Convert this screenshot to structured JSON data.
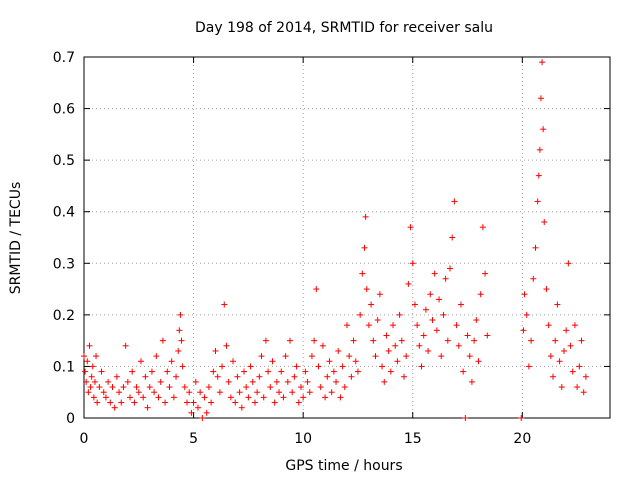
{
  "chart_data": {
    "type": "scatter",
    "title": "Day 198 of 2014, SRMTID for receiver salu",
    "xlabel": "GPS time / hours",
    "ylabel": "SRMTID / TECUs",
    "xlim": [
      0,
      24
    ],
    "ylim": [
      0,
      0.7
    ],
    "x_ticks": [
      0,
      5,
      10,
      15,
      20
    ],
    "x_tick_labels": [
      "0",
      "5",
      "10",
      "15",
      "20"
    ],
    "y_ticks": [
      0,
      0.1,
      0.2,
      0.3,
      0.4,
      0.5,
      0.6,
      0.7
    ],
    "y_tick_labels": [
      "0",
      "0.1",
      "0.2",
      "0.3",
      "0.4",
      "0.5",
      "0.6",
      "0.7"
    ],
    "grid": true,
    "marker": "plus",
    "marker_color": "#ff0000",
    "series": [
      {
        "name": "SRMTID",
        "points": [
          [
            0.0,
            0.12
          ],
          [
            0.05,
            0.09
          ],
          [
            0.1,
            0.07
          ],
          [
            0.15,
            0.11
          ],
          [
            0.2,
            0.05
          ],
          [
            0.25,
            0.14
          ],
          [
            0.3,
            0.06
          ],
          [
            0.35,
            0.08
          ],
          [
            0.4,
            0.1
          ],
          [
            0.45,
            0.04
          ],
          [
            0.5,
            0.07
          ],
          [
            0.55,
            0.12
          ],
          [
            0.6,
            0.03
          ],
          [
            0.7,
            0.06
          ],
          [
            0.8,
            0.09
          ],
          [
            0.9,
            0.05
          ],
          [
            1.0,
            0.04
          ],
          [
            1.1,
            0.07
          ],
          [
            1.2,
            0.03
          ],
          [
            1.3,
            0.06
          ],
          [
            1.4,
            0.02
          ],
          [
            1.5,
            0.08
          ],
          [
            1.6,
            0.05
          ],
          [
            1.7,
            0.03
          ],
          [
            1.8,
            0.06
          ],
          [
            1.9,
            0.14
          ],
          [
            2.0,
            0.07
          ],
          [
            2.1,
            0.04
          ],
          [
            2.2,
            0.09
          ],
          [
            2.3,
            0.03
          ],
          [
            2.4,
            0.06
          ],
          [
            2.5,
            0.05
          ],
          [
            2.6,
            0.11
          ],
          [
            2.7,
            0.04
          ],
          [
            2.8,
            0.08
          ],
          [
            2.9,
            0.02
          ],
          [
            3.0,
            0.06
          ],
          [
            3.1,
            0.09
          ],
          [
            3.2,
            0.05
          ],
          [
            3.3,
            0.12
          ],
          [
            3.4,
            0.04
          ],
          [
            3.5,
            0.07
          ],
          [
            3.6,
            0.15
          ],
          [
            3.7,
            0.03
          ],
          [
            3.8,
            0.09
          ],
          [
            3.9,
            0.06
          ],
          [
            4.0,
            0.11
          ],
          [
            4.1,
            0.04
          ],
          [
            4.2,
            0.08
          ],
          [
            4.3,
            0.13
          ],
          [
            4.35,
            0.17
          ],
          [
            4.4,
            0.2
          ],
          [
            4.45,
            0.15
          ],
          [
            4.5,
            0.1
          ],
          [
            4.6,
            0.06
          ],
          [
            4.7,
            0.03
          ],
          [
            4.8,
            0.05
          ],
          [
            4.9,
            0.01
          ],
          [
            5.0,
            0.03
          ],
          [
            5.1,
            0.07
          ],
          [
            5.2,
            0.02
          ],
          [
            5.3,
            0.05
          ],
          [
            5.4,
            0.0
          ],
          [
            5.5,
            0.04
          ],
          [
            5.6,
            0.01
          ],
          [
            5.7,
            0.06
          ],
          [
            5.8,
            0.03
          ],
          [
            5.9,
            0.09
          ],
          [
            6.0,
            0.13
          ],
          [
            6.1,
            0.08
          ],
          [
            6.2,
            0.05
          ],
          [
            6.3,
            0.1
          ],
          [
            6.4,
            0.22
          ],
          [
            6.5,
            0.14
          ],
          [
            6.6,
            0.07
          ],
          [
            6.7,
            0.04
          ],
          [
            6.8,
            0.11
          ],
          [
            6.9,
            0.03
          ],
          [
            7.0,
            0.08
          ],
          [
            7.1,
            0.05
          ],
          [
            7.2,
            0.02
          ],
          [
            7.3,
            0.09
          ],
          [
            7.4,
            0.06
          ],
          [
            7.5,
            0.04
          ],
          [
            7.6,
            0.1
          ],
          [
            7.7,
            0.07
          ],
          [
            7.8,
            0.03
          ],
          [
            7.9,
            0.05
          ],
          [
            8.0,
            0.08
          ],
          [
            8.1,
            0.12
          ],
          [
            8.2,
            0.04
          ],
          [
            8.3,
            0.15
          ],
          [
            8.4,
            0.09
          ],
          [
            8.5,
            0.06
          ],
          [
            8.6,
            0.11
          ],
          [
            8.7,
            0.03
          ],
          [
            8.8,
            0.07
          ],
          [
            8.9,
            0.05
          ],
          [
            9.0,
            0.09
          ],
          [
            9.1,
            0.04
          ],
          [
            9.2,
            0.12
          ],
          [
            9.3,
            0.07
          ],
          [
            9.4,
            0.15
          ],
          [
            9.5,
            0.05
          ],
          [
            9.6,
            0.08
          ],
          [
            9.7,
            0.1
          ],
          [
            9.8,
            0.03
          ],
          [
            9.9,
            0.06
          ],
          [
            10.0,
            0.04
          ],
          [
            10.1,
            0.09
          ],
          [
            10.2,
            0.07
          ],
          [
            10.3,
            0.05
          ],
          [
            10.4,
            0.12
          ],
          [
            10.5,
            0.15
          ],
          [
            10.6,
            0.25
          ],
          [
            10.7,
            0.1
          ],
          [
            10.8,
            0.06
          ],
          [
            10.9,
            0.14
          ],
          [
            11.0,
            0.04
          ],
          [
            11.1,
            0.08
          ],
          [
            11.2,
            0.11
          ],
          [
            11.3,
            0.05
          ],
          [
            11.4,
            0.09
          ],
          [
            11.5,
            0.07
          ],
          [
            11.6,
            0.13
          ],
          [
            11.7,
            0.04
          ],
          [
            11.8,
            0.1
          ],
          [
            11.9,
            0.06
          ],
          [
            12.0,
            0.18
          ],
          [
            12.1,
            0.12
          ],
          [
            12.2,
            0.08
          ],
          [
            12.3,
            0.15
          ],
          [
            12.4,
            0.11
          ],
          [
            12.5,
            0.09
          ],
          [
            12.6,
            0.2
          ],
          [
            12.7,
            0.28
          ],
          [
            12.8,
            0.33
          ],
          [
            12.85,
            0.39
          ],
          [
            12.9,
            0.25
          ],
          [
            13.0,
            0.18
          ],
          [
            13.1,
            0.22
          ],
          [
            13.2,
            0.15
          ],
          [
            13.3,
            0.12
          ],
          [
            13.4,
            0.19
          ],
          [
            13.5,
            0.24
          ],
          [
            13.6,
            0.1
          ],
          [
            13.7,
            0.07
          ],
          [
            13.8,
            0.16
          ],
          [
            13.9,
            0.13
          ],
          [
            14.0,
            0.09
          ],
          [
            14.1,
            0.18
          ],
          [
            14.2,
            0.14
          ],
          [
            14.3,
            0.11
          ],
          [
            14.4,
            0.2
          ],
          [
            14.5,
            0.15
          ],
          [
            14.6,
            0.08
          ],
          [
            14.7,
            0.12
          ],
          [
            14.8,
            0.26
          ],
          [
            14.9,
            0.37
          ],
          [
            15.0,
            0.3
          ],
          [
            15.1,
            0.22
          ],
          [
            15.2,
            0.18
          ],
          [
            15.3,
            0.14
          ],
          [
            15.4,
            0.1
          ],
          [
            15.5,
            0.16
          ],
          [
            15.6,
            0.21
          ],
          [
            15.7,
            0.13
          ],
          [
            15.8,
            0.24
          ],
          [
            15.9,
            0.19
          ],
          [
            16.0,
            0.28
          ],
          [
            16.1,
            0.17
          ],
          [
            16.2,
            0.23
          ],
          [
            16.3,
            0.12
          ],
          [
            16.4,
            0.2
          ],
          [
            16.5,
            0.27
          ],
          [
            16.6,
            0.15
          ],
          [
            16.7,
            0.29
          ],
          [
            16.8,
            0.35
          ],
          [
            16.9,
            0.42
          ],
          [
            17.0,
            0.18
          ],
          [
            17.1,
            0.14
          ],
          [
            17.2,
            0.22
          ],
          [
            17.3,
            0.09
          ],
          [
            17.4,
            0.0
          ],
          [
            17.5,
            0.16
          ],
          [
            17.6,
            0.12
          ],
          [
            17.7,
            0.07
          ],
          [
            17.8,
            0.15
          ],
          [
            17.9,
            0.19
          ],
          [
            18.0,
            0.11
          ],
          [
            18.1,
            0.24
          ],
          [
            18.2,
            0.37
          ],
          [
            18.3,
            0.28
          ],
          [
            18.4,
            0.16
          ],
          [
            19.95,
            0.0
          ],
          [
            20.05,
            0.17
          ],
          [
            20.1,
            0.24
          ],
          [
            20.2,
            0.2
          ],
          [
            20.3,
            0.1
          ],
          [
            20.4,
            0.15
          ],
          [
            20.5,
            0.27
          ],
          [
            20.6,
            0.33
          ],
          [
            20.7,
            0.42
          ],
          [
            20.75,
            0.47
          ],
          [
            20.8,
            0.52
          ],
          [
            20.85,
            0.62
          ],
          [
            20.9,
            0.69
          ],
          [
            20.95,
            0.56
          ],
          [
            21.0,
            0.38
          ],
          [
            21.1,
            0.25
          ],
          [
            21.2,
            0.18
          ],
          [
            21.3,
            0.12
          ],
          [
            21.4,
            0.08
          ],
          [
            21.5,
            0.15
          ],
          [
            21.6,
            0.22
          ],
          [
            21.7,
            0.11
          ],
          [
            21.8,
            0.06
          ],
          [
            21.9,
            0.13
          ],
          [
            22.0,
            0.17
          ],
          [
            22.1,
            0.3
          ],
          [
            22.2,
            0.14
          ],
          [
            22.3,
            0.09
          ],
          [
            22.4,
            0.18
          ],
          [
            22.5,
            0.06
          ],
          [
            22.6,
            0.1
          ],
          [
            22.7,
            0.15
          ],
          [
            22.8,
            0.05
          ],
          [
            22.9,
            0.08
          ]
        ]
      }
    ]
  }
}
